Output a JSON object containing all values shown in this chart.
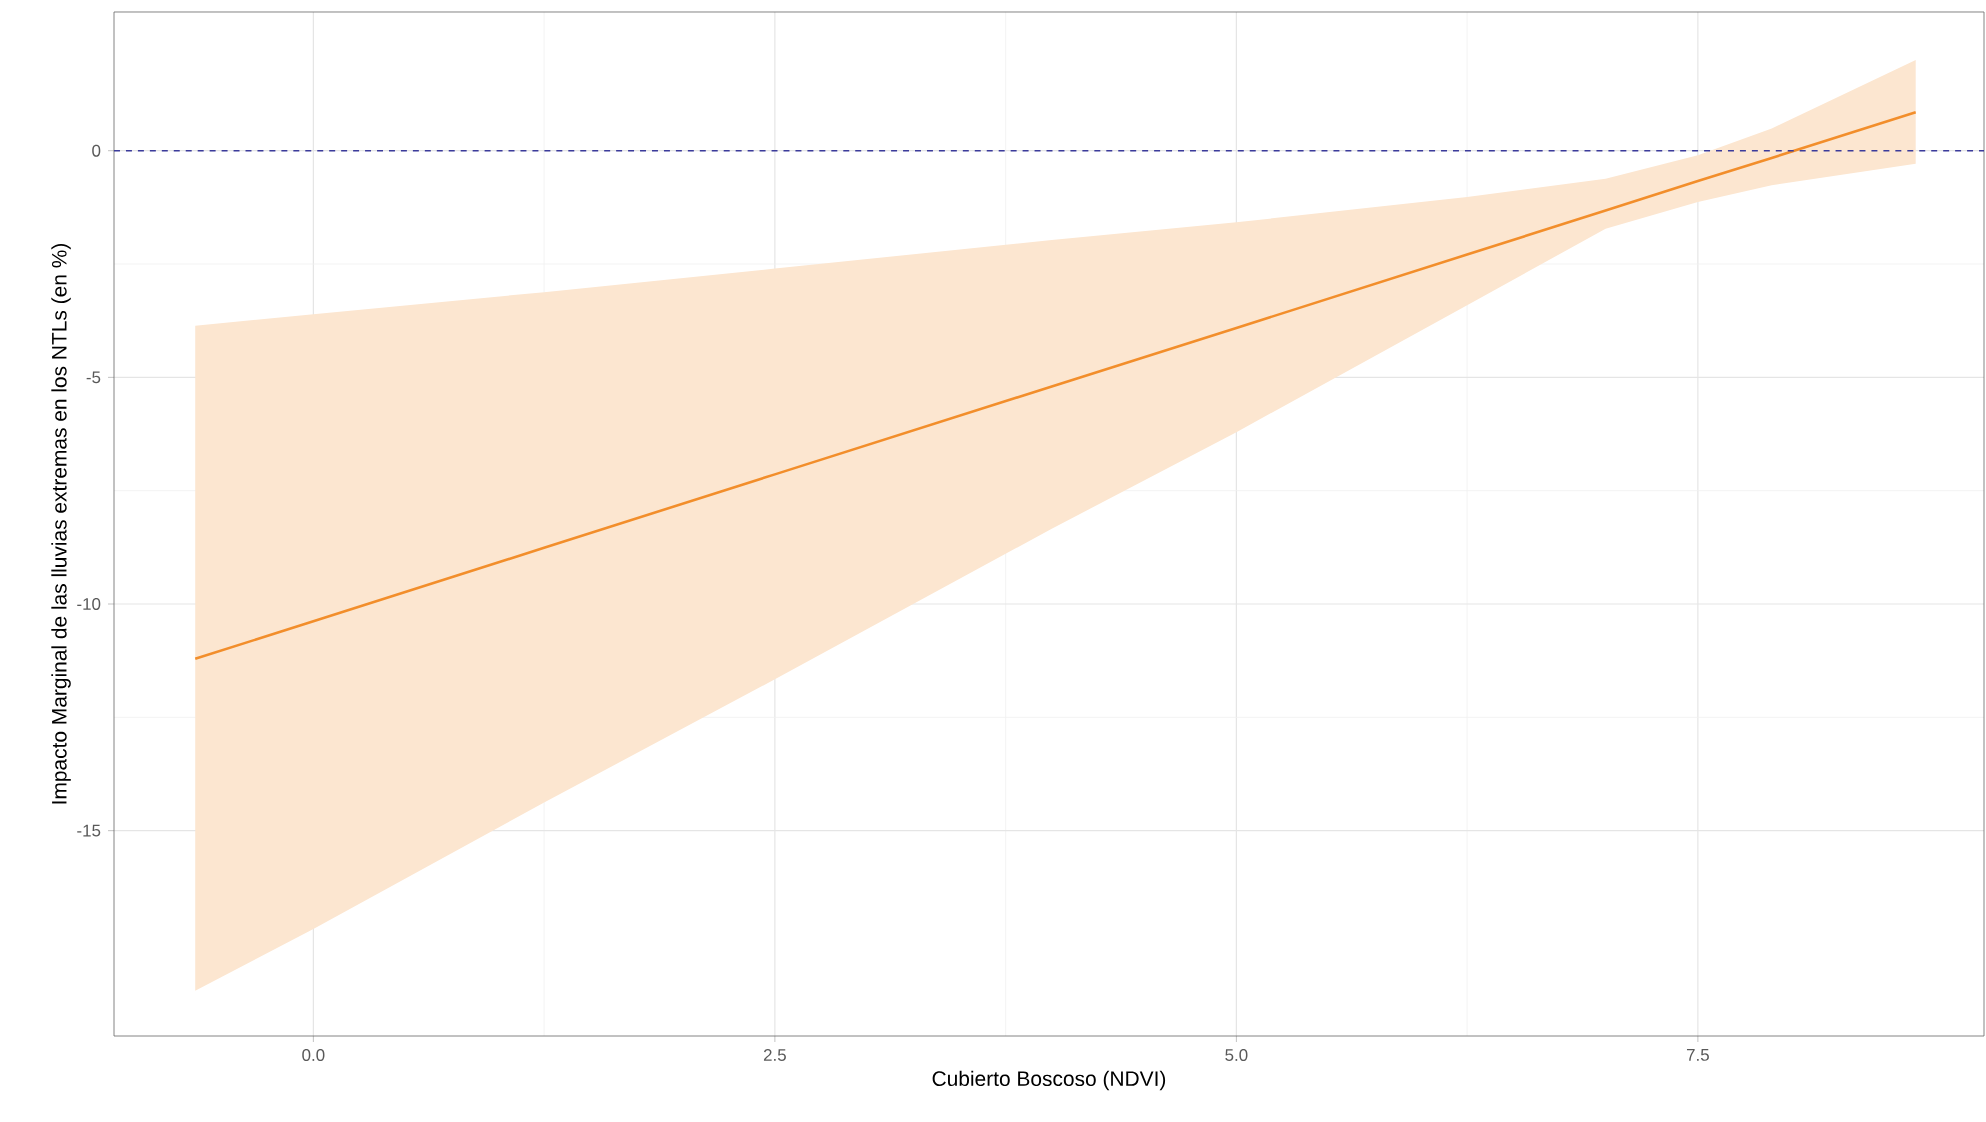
{
  "chart_data": {
    "type": "line",
    "xlabel": "Cubierto Boscoso (NDVI)",
    "ylabel": "Impacto Marginal de las lluvias extremas en los NTLs (en %)",
    "x": [
      -0.64,
      0,
      1.25,
      2.5,
      4.0,
      5.0,
      6.25,
      7.0,
      7.5,
      7.9,
      8.68
    ],
    "series": [
      {
        "color": "#f28e2b",
        "values": [
          -11.21,
          -10.38,
          -8.76,
          -7.14,
          -5.2,
          -3.91,
          -2.29,
          -1.32,
          -0.67,
          -0.16,
          0.85
        ],
        "lower": [
          -18.53,
          -17.17,
          -14.38,
          -11.66,
          -8.34,
          -6.21,
          -3.41,
          -1.72,
          -1.13,
          -0.76,
          -0.29
        ],
        "upper": [
          -3.86,
          -3.61,
          -3.12,
          -2.6,
          -1.97,
          -1.58,
          -1.02,
          -0.62,
          -0.1,
          0.49,
          2.0
        ]
      }
    ],
    "xlim": [
      -1.08,
      9.05
    ],
    "ylim": [
      -19.53,
      3.06
    ],
    "xticks": [
      {
        "value": 0,
        "label": "0.0"
      },
      {
        "value": 2.5,
        "label": "2.5"
      },
      {
        "value": 5,
        "label": "5.0"
      },
      {
        "value": 7.5,
        "label": "7.5"
      }
    ],
    "yticks": [
      {
        "value": -15,
        "label": "-15"
      },
      {
        "value": -10,
        "label": "-10"
      },
      {
        "value": -5,
        "label": "-5"
      },
      {
        "value": 0,
        "label": "0"
      }
    ],
    "ref_lines": [
      {
        "axis": "y",
        "value": 0,
        "color": "#3b3b9b",
        "line_style": "dashed"
      }
    ],
    "grid": true,
    "marker": "none",
    "line_style": "solid"
  }
}
